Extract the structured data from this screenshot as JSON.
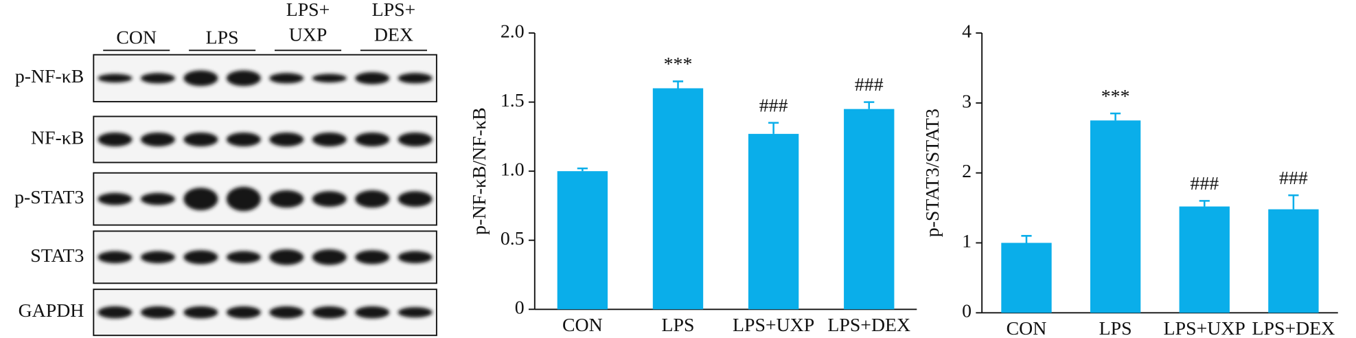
{
  "blot": {
    "groups": [
      [
        "CON"
      ],
      [
        "LPS"
      ],
      [
        "LPS+",
        "UXP"
      ],
      [
        "LPS+",
        "DEX"
      ]
    ],
    "rows": [
      "p-NF-κB",
      "NF-κB",
      "p-STAT3",
      "STAT3",
      "GAPDH"
    ]
  },
  "chart_data": [
    {
      "type": "bar",
      "y_label": "p-NF-κB/NF-κB",
      "categories": [
        "CON",
        "LPS",
        "LPS+UXP",
        "LPS+DEX"
      ],
      "values": [
        1.0,
        1.6,
        1.27,
        1.45
      ],
      "errors": [
        0.02,
        0.05,
        0.08,
        0.05
      ],
      "significance": [
        null,
        "***",
        "###",
        "###"
      ],
      "color": "#0aaeea",
      "ylim": [
        0,
        2
      ],
      "yticks": [
        0,
        0.5,
        {
          "value": 1,
          "label": "1.0"
        },
        1.5,
        {
          "value": 2,
          "label": "2.0"
        }
      ]
    },
    {
      "type": "bar",
      "y_label": "p-STAT3/STAT3",
      "categories": [
        "CON",
        "LPS",
        "LPS+UXP",
        "LPS+DEX"
      ],
      "values": [
        1.0,
        2.75,
        1.52,
        1.48
      ],
      "errors": [
        0.1,
        0.1,
        0.08,
        0.2
      ],
      "significance": [
        null,
        "***",
        "###",
        "###"
      ],
      "color": "#0aaeea",
      "ylim": [
        0,
        4
      ],
      "yticks": [
        0,
        1,
        2,
        3,
        4
      ]
    }
  ]
}
